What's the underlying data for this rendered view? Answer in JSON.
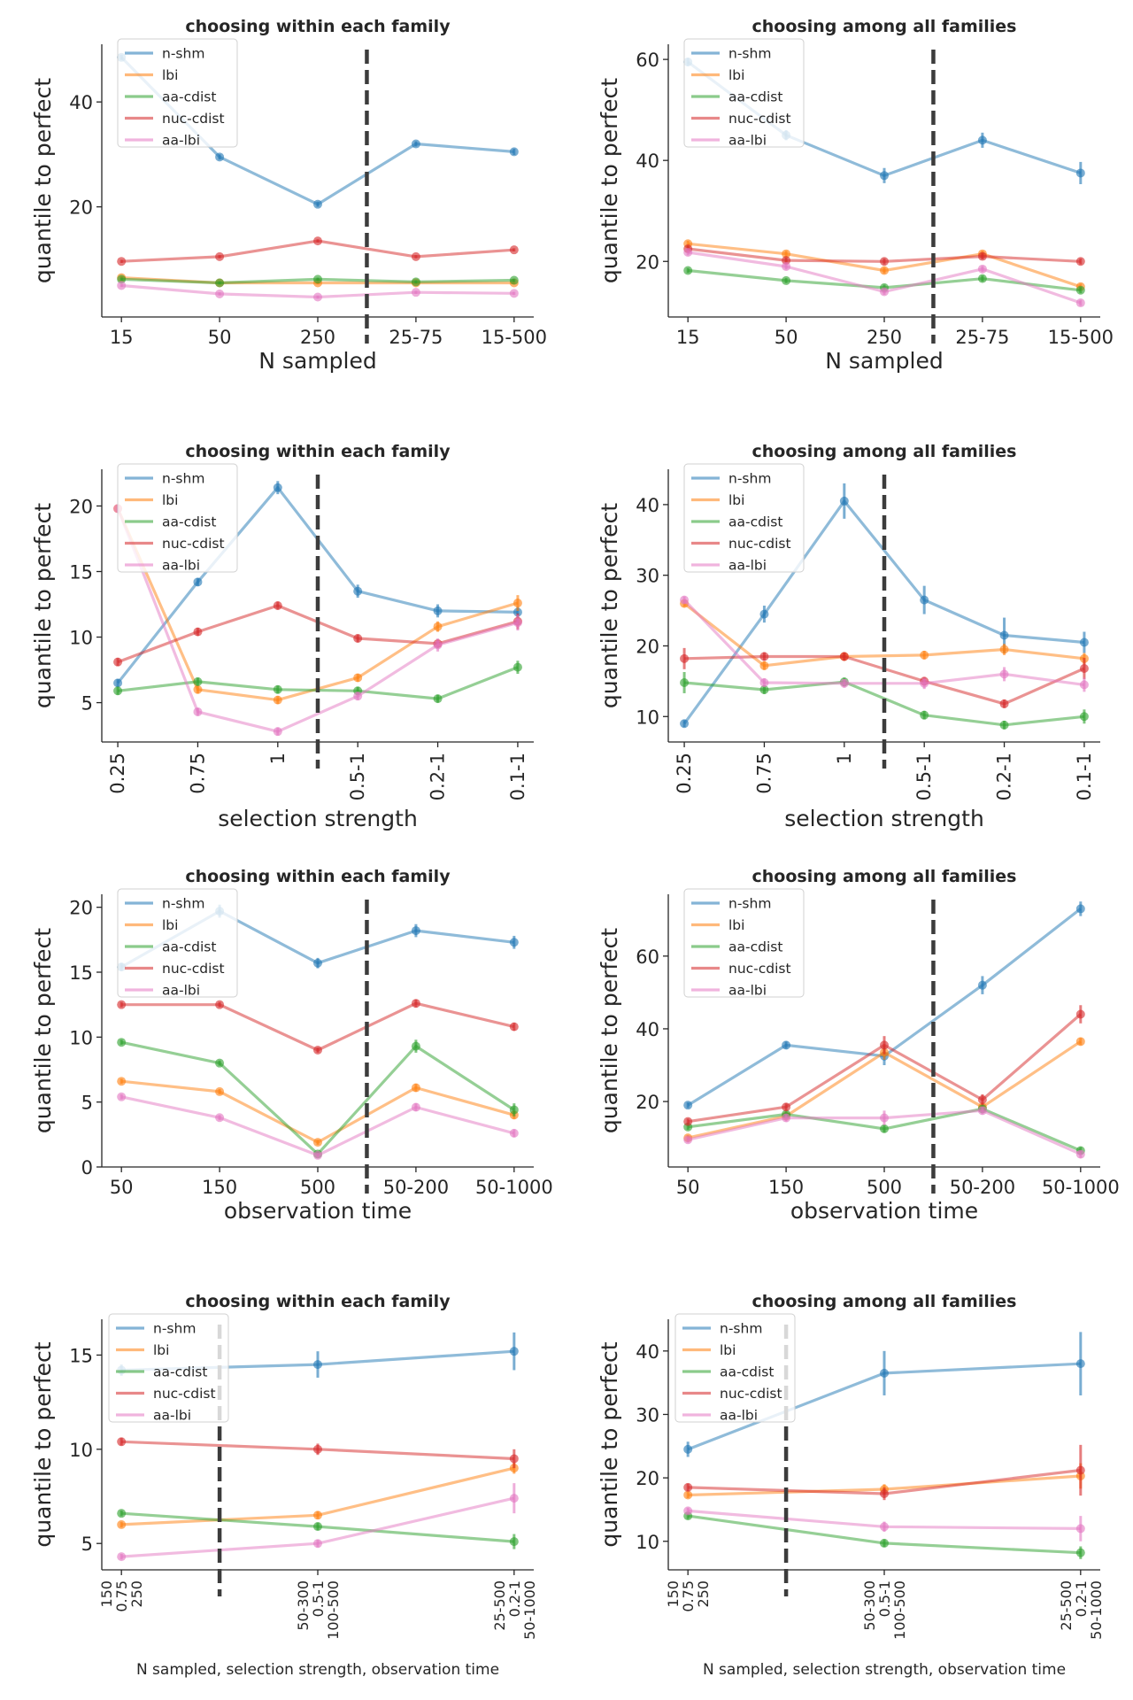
{
  "colors": {
    "n-shm": "#1f77b4",
    "lbi": "#ff7f0e",
    "aa-cdist": "#2ca02c",
    "nuc-cdist": "#d62728",
    "aa-lbi": "#e377c2",
    "divider": "#3c3c3c",
    "axis": "#262626"
  },
  "chart_data": [
    {
      "type": "line",
      "title": "choosing within each family",
      "xlabel": "N sampled",
      "ylabel": "quantile to perfect",
      "categories": [
        "15",
        "50",
        "250",
        "25-75",
        "15-500"
      ],
      "ylim": [
        -1,
        51
      ],
      "yticks": [
        20,
        40
      ],
      "divider_at": 2.5,
      "legend_labels": [
        "n-shm",
        "lbi",
        "aa-cdist",
        "nuc-cdist",
        "aa-lbi"
      ],
      "series": [
        {
          "name": "n-shm",
          "values": [
            48.5,
            29.5,
            20.5,
            32,
            30.5
          ],
          "err": [
            0.5,
            0.5,
            0.5,
            0.5,
            0.6
          ]
        },
        {
          "name": "lbi",
          "values": [
            6.5,
            5.5,
            5.5,
            5.5,
            5.5
          ],
          "err": [
            0.3,
            0.3,
            0.3,
            0.3,
            0.3
          ]
        },
        {
          "name": "aa-cdist",
          "values": [
            6.2,
            5.5,
            6.2,
            5.7,
            6
          ],
          "err": [
            0.3,
            0.3,
            0.3,
            0.3,
            0.3
          ]
        },
        {
          "name": "nuc-cdist",
          "values": [
            9.6,
            10.5,
            13.5,
            10.5,
            11.8
          ],
          "err": [
            0.3,
            0.3,
            0.3,
            0.3,
            0.3
          ]
        },
        {
          "name": "aa-lbi",
          "values": [
            5,
            3.4,
            2.8,
            3.7,
            3.5
          ],
          "err": [
            0.3,
            0.3,
            0.3,
            0.3,
            0.3
          ]
        }
      ]
    },
    {
      "type": "line",
      "title": "choosing among all families",
      "xlabel": "N sampled",
      "ylabel": "quantile to perfect",
      "categories": [
        "15",
        "50",
        "250",
        "25-75",
        "15-500"
      ],
      "ylim": [
        9,
        63
      ],
      "yticks": [
        20,
        40,
        60
      ],
      "divider_at": 2.5,
      "legend_labels": [
        "n-shm",
        "lbi",
        "aa-cdist",
        "nuc-cdist",
        "aa-lbi"
      ],
      "series": [
        {
          "name": "n-shm",
          "values": [
            59.5,
            45,
            37,
            44,
            37.5
          ],
          "err": [
            0.8,
            1,
            1.5,
            1.5,
            2.2
          ]
        },
        {
          "name": "lbi",
          "values": [
            23.5,
            21.5,
            18.2,
            21.5,
            15
          ],
          "err": [
            0.6,
            0.6,
            0.6,
            0.6,
            0.6
          ]
        },
        {
          "name": "aa-cdist",
          "values": [
            18.2,
            16.2,
            14.8,
            16.6,
            14.3
          ],
          "err": [
            0.5,
            0.5,
            0.6,
            0.6,
            0.6
          ]
        },
        {
          "name": "nuc-cdist",
          "values": [
            22.5,
            20.2,
            20,
            21,
            20
          ],
          "err": [
            0.6,
            0.6,
            0.6,
            0.6,
            0.6
          ]
        },
        {
          "name": "aa-lbi",
          "values": [
            21.8,
            19,
            14,
            18.5,
            11.8
          ],
          "err": [
            0.6,
            0.6,
            0.6,
            0.6,
            0.6
          ]
        }
      ]
    },
    {
      "type": "line",
      "title": "choosing within each family",
      "xlabel": "selection strength",
      "ylabel": "quantile to perfect",
      "categories": [
        "0.25",
        "0.75",
        "1",
        "0.5-1",
        "0.2-1",
        "0.1-1"
      ],
      "rotate_ticks": true,
      "ylim": [
        2,
        22.8
      ],
      "yticks": [
        5,
        10,
        15,
        20
      ],
      "divider_at": 2.5,
      "legend_labels": [
        "n-shm",
        "lbi",
        "aa-cdist",
        "nuc-cdist",
        "aa-lbi"
      ],
      "series": [
        {
          "name": "n-shm",
          "values": [
            6.5,
            14.2,
            21.4,
            13.5,
            12,
            11.9
          ],
          "err": [
            0.3,
            0.3,
            0.5,
            0.5,
            0.5,
            0.4
          ]
        },
        {
          "name": "lbi",
          "values": [
            19.8,
            6,
            5.2,
            6.9,
            10.8,
            12.6
          ],
          "err": [
            0.3,
            0.3,
            0.3,
            0.3,
            0.4,
            0.6
          ]
        },
        {
          "name": "aa-cdist",
          "values": [
            5.9,
            6.6,
            6,
            5.9,
            5.3,
            7.7
          ],
          "err": [
            0.3,
            0.3,
            0.3,
            0.3,
            0.3,
            0.5
          ]
        },
        {
          "name": "nuc-cdist",
          "values": [
            8.1,
            10.4,
            12.4,
            9.9,
            9.5,
            11.2
          ],
          "err": [
            0.3,
            0.3,
            0.3,
            0.3,
            0.3,
            0.6
          ]
        },
        {
          "name": "aa-lbi",
          "values": [
            19.8,
            4.3,
            2.8,
            5.5,
            9.4,
            11.1
          ],
          "err": [
            0.3,
            0.3,
            0.3,
            0.3,
            0.5,
            0.6
          ]
        }
      ]
    },
    {
      "type": "line",
      "title": "choosing among all families",
      "xlabel": "selection strength",
      "ylabel": "quantile to perfect",
      "categories": [
        "0.25",
        "0.75",
        "1",
        "0.5-1",
        "0.2-1",
        "0.1-1"
      ],
      "rotate_ticks": true,
      "ylim": [
        6.4,
        45
      ],
      "yticks": [
        10,
        20,
        30,
        40
      ],
      "divider_at": 2.5,
      "legend_labels": [
        "n-shm",
        "lbi",
        "aa-cdist",
        "nuc-cdist",
        "aa-lbi"
      ],
      "series": [
        {
          "name": "n-shm",
          "values": [
            9,
            24.5,
            40.5,
            26.5,
            21.5,
            20.5
          ],
          "err": [
            0.5,
            1.2,
            2.5,
            2,
            2.5,
            1.5
          ]
        },
        {
          "name": "lbi",
          "values": [
            26,
            17.2,
            18.5,
            18.7,
            19.5,
            18.2
          ],
          "err": [
            0.5,
            0.6,
            0.6,
            0.6,
            0.8,
            0.8
          ]
        },
        {
          "name": "aa-cdist",
          "values": [
            14.8,
            13.8,
            14.9,
            10.2,
            8.8,
            10
          ],
          "err": [
            1.5,
            0.6,
            0.6,
            0.6,
            0.6,
            1
          ]
        },
        {
          "name": "nuc-cdist",
          "values": [
            18.2,
            18.5,
            18.5,
            15,
            11.8,
            16.8
          ],
          "err": [
            1.5,
            0.6,
            0.6,
            0.6,
            0.6,
            1.5
          ]
        },
        {
          "name": "aa-lbi",
          "values": [
            26.5,
            14.8,
            14.7,
            14.7,
            16,
            14.5
          ],
          "err": [
            0.5,
            0.6,
            0.6,
            0.8,
            1,
            1
          ]
        }
      ]
    },
    {
      "type": "line",
      "title": "choosing within each family",
      "xlabel": "observation time",
      "ylabel": "quantile to perfect",
      "categories": [
        "50",
        "150",
        "500",
        "50-200",
        "50-1000"
      ],
      "ylim": [
        0,
        21
      ],
      "yticks": [
        0,
        5,
        10,
        15,
        20
      ],
      "divider_at": 2.5,
      "legend_labels": [
        "n-shm",
        "lbi",
        "aa-cdist",
        "nuc-cdist",
        "aa-lbi"
      ],
      "series": [
        {
          "name": "n-shm",
          "values": [
            15.4,
            19.7,
            15.7,
            18.2,
            17.3
          ],
          "err": [
            0.3,
            0.5,
            0.4,
            0.5,
            0.5
          ]
        },
        {
          "name": "lbi",
          "values": [
            6.6,
            5.8,
            1.9,
            6.1,
            4
          ],
          "err": [
            0.2,
            0.2,
            0.2,
            0.3,
            0.3
          ]
        },
        {
          "name": "aa-cdist",
          "values": [
            9.6,
            8,
            1,
            9.3,
            4.4
          ],
          "err": [
            0.2,
            0.2,
            0.2,
            0.5,
            0.5
          ]
        },
        {
          "name": "nuc-cdist",
          "values": [
            12.5,
            12.5,
            9,
            12.6,
            10.8
          ],
          "err": [
            0.2,
            0.2,
            0.2,
            0.3,
            0.3
          ]
        },
        {
          "name": "aa-lbi",
          "values": [
            5.4,
            3.8,
            0.9,
            4.6,
            2.6
          ],
          "err": [
            0.2,
            0.2,
            0.2,
            0.3,
            0.3
          ]
        }
      ]
    },
    {
      "type": "line",
      "title": "choosing among all families",
      "xlabel": "observation time",
      "ylabel": "quantile to perfect",
      "categories": [
        "50",
        "150",
        "500",
        "50-200",
        "50-1000"
      ],
      "ylim": [
        2,
        77
      ],
      "yticks": [
        20,
        40,
        60
      ],
      "divider_at": 2.5,
      "legend_labels": [
        "n-shm",
        "lbi",
        "aa-cdist",
        "nuc-cdist",
        "aa-lbi"
      ],
      "series": [
        {
          "name": "n-shm",
          "values": [
            19,
            35.5,
            32.5,
            52,
            73
          ],
          "err": [
            0.8,
            1,
            2.5,
            2.5,
            2
          ]
        },
        {
          "name": "lbi",
          "values": [
            10,
            16,
            33.5,
            18.5,
            36.5
          ],
          "err": [
            0.8,
            0.8,
            2,
            1,
            1
          ]
        },
        {
          "name": "aa-cdist",
          "values": [
            13,
            16.5,
            12.5,
            18,
            6.5
          ],
          "err": [
            0.8,
            0.8,
            1,
            1,
            1
          ]
        },
        {
          "name": "nuc-cdist",
          "values": [
            14.5,
            18.5,
            35.5,
            20.5,
            44
          ],
          "err": [
            0.8,
            1,
            2.5,
            1.5,
            2.5
          ]
        },
        {
          "name": "aa-lbi",
          "values": [
            9.5,
            15.5,
            15.5,
            17.5,
            5.5
          ],
          "err": [
            0.8,
            1,
            2,
            1,
            1
          ]
        }
      ]
    },
    {
      "type": "line",
      "title": "choosing within each family",
      "xlabel": "N sampled, selection strength, observation time",
      "ylabel": "quantile to perfect",
      "categories": [
        "150\n0.75\n250",
        "50-300\n0.5-1\n100-500",
        "25-500\n0.2-1\n50-1000"
      ],
      "category_positions": [
        0,
        2,
        4
      ],
      "x_domain": [
        -0.2,
        4.2
      ],
      "ylim": [
        3.6,
        16.9
      ],
      "yticks": [
        5,
        10,
        15
      ],
      "divider_at": 1,
      "legend_labels": [
        "n-shm",
        "lbi",
        "aa-cdist",
        "nuc-cdist",
        "aa-lbi"
      ],
      "series": [
        {
          "name": "n-shm",
          "values": [
            14.2,
            14.5,
            15.2
          ],
          "err": [
            0.3,
            0.7,
            1
          ]
        },
        {
          "name": "lbi",
          "values": [
            6,
            6.5,
            9
          ],
          "err": [
            0.15,
            0.2,
            0.3
          ]
        },
        {
          "name": "aa-cdist",
          "values": [
            6.6,
            5.9,
            5.1
          ],
          "err": [
            0.15,
            0.2,
            0.4
          ]
        },
        {
          "name": "nuc-cdist",
          "values": [
            10.4,
            10,
            9.5
          ],
          "err": [
            0.2,
            0.3,
            0.5
          ]
        },
        {
          "name": "aa-lbi",
          "values": [
            4.3,
            5,
            7.4
          ],
          "err": [
            0.15,
            0.2,
            0.8
          ]
        }
      ]
    },
    {
      "type": "line",
      "title": "choosing among all families",
      "xlabel": "N sampled, selection strength, observation time",
      "ylabel": "quantile to perfect",
      "categories": [
        "150\n0.75\n250",
        "50-300\n0.5-1\n100-500",
        "25-500\n0.2-1\n50-1000"
      ],
      "category_positions": [
        0,
        2,
        4
      ],
      "x_domain": [
        -0.2,
        4.2
      ],
      "ylim": [
        5.5,
        45
      ],
      "yticks": [
        10,
        20,
        30,
        40
      ],
      "divider_at": 1,
      "legend_labels": [
        "n-shm",
        "lbi",
        "aa-cdist",
        "nuc-cdist",
        "aa-lbi"
      ],
      "series": [
        {
          "name": "n-shm",
          "values": [
            24.5,
            36.5,
            38
          ],
          "err": [
            1.2,
            3.5,
            5
          ]
        },
        {
          "name": "lbi",
          "values": [
            17.3,
            18.2,
            20.3
          ],
          "err": [
            0.5,
            0.8,
            2
          ]
        },
        {
          "name": "aa-cdist",
          "values": [
            14,
            9.7,
            8.2
          ],
          "err": [
            0.5,
            0.6,
            1
          ]
        },
        {
          "name": "nuc-cdist",
          "values": [
            18.5,
            17.5,
            21.2
          ],
          "err": [
            0.6,
            1,
            4
          ]
        },
        {
          "name": "aa-lbi",
          "values": [
            14.8,
            12.3,
            12
          ],
          "err": [
            0.5,
            0.8,
            2
          ]
        }
      ]
    }
  ]
}
